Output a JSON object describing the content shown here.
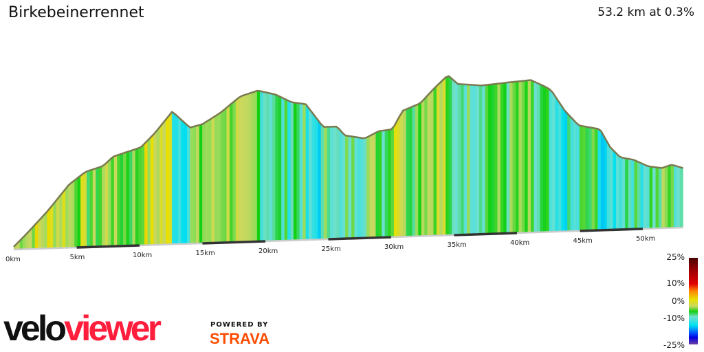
{
  "header": {
    "title": "Birkebeinerrennet",
    "summary": "53.2 km at 0.3%"
  },
  "legend": {
    "labels": [
      "25%",
      "10%",
      "0%",
      "-10%",
      "-25%"
    ]
  },
  "branding": {
    "logo_left": "velo",
    "logo_right": "viewer",
    "powered_by": "POWERED BY",
    "strava": "STRAVA"
  },
  "chart_data": {
    "type": "area",
    "title": "Birkebeinerrennet",
    "xlabel": "",
    "ylabel": "",
    "x_ticks": [
      "0km",
      "5km",
      "10km",
      "15km",
      "20km",
      "25km",
      "30km",
      "35km",
      "40km",
      "45km",
      "50km"
    ],
    "xlim": [
      0,
      53.2
    ],
    "colorscale": {
      "min": -25,
      "max": 25,
      "unit": "%"
    },
    "profile_km": [
      0,
      1.1,
      2.7,
      4.4,
      5.7,
      7.1,
      7.9,
      10.1,
      11.2,
      12.6,
      14,
      15,
      16.4,
      18,
      19.4,
      20.8,
      22.1,
      23.2,
      24.6,
      25.7,
      26.3,
      27.9,
      29,
      30.1,
      30.9,
      32.3,
      33.4,
      34.5,
      35.3,
      37.2,
      39.4,
      41.1,
      42.2,
      42.7,
      43.8,
      44.9,
      46.6,
      47.4,
      48.2,
      49.3,
      50.4,
      51.5,
      52.3,
      53.2
    ],
    "relative_elevation": [
      0,
      18,
      46,
      80,
      96,
      103,
      115,
      126,
      144,
      172,
      150,
      154,
      168,
      189,
      196,
      190,
      179,
      176,
      145,
      145,
      133,
      128,
      137,
      139,
      163,
      172,
      191,
      208,
      196,
      193,
      196,
      198,
      189,
      184,
      156,
      136,
      130,
      106,
      92,
      88,
      79,
      76,
      80,
      75
    ]
  }
}
